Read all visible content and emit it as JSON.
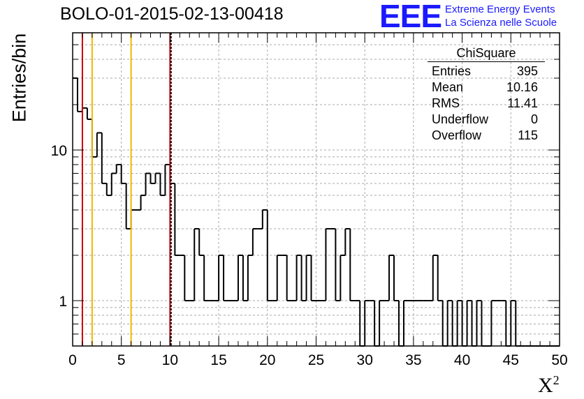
{
  "chart_data": {
    "type": "histogram",
    "title": "BOLO-01-2015-02-13-00418",
    "xlabel": "X",
    "xlabel_sup": "2",
    "ylabel": "Entries/bin",
    "xlim": [
      0,
      50
    ],
    "ylim": [
      0.5,
      60
    ],
    "yscale": "log",
    "grid": true,
    "bin_width": 0.5,
    "x_ticks": [
      0,
      5,
      10,
      15,
      20,
      25,
      30,
      35,
      40,
      45,
      50
    ],
    "y_ticks": [
      {
        "value": 1,
        "label": "1"
      },
      {
        "value": 10,
        "label": "10"
      }
    ],
    "values": [
      30,
      18,
      19,
      16,
      9,
      13,
      6,
      5,
      7,
      8,
      6,
      3,
      4,
      4,
      5,
      7,
      6,
      7,
      5,
      8,
      6,
      2,
      2,
      1,
      1,
      3,
      2,
      1,
      1,
      1,
      2,
      1,
      1,
      1,
      2,
      1,
      2,
      3,
      3,
      4,
      1,
      1,
      2,
      2,
      1,
      1,
      2,
      1,
      2,
      1,
      1,
      1,
      3,
      3,
      1,
      2,
      3,
      1,
      1,
      0.5,
      1,
      1,
      0.5,
      1,
      1,
      2,
      1,
      0.5,
      1,
      1,
      1,
      1,
      1,
      1,
      2,
      1,
      0.5,
      1,
      0.5,
      1,
      0.5,
      1,
      0.5,
      1,
      0.5,
      0.5,
      1,
      1,
      1,
      0.5,
      1,
      0.5,
      0.5,
      0.5,
      0.5,
      0.5,
      0.5,
      0.5,
      0.5,
      0.5
    ],
    "vertical_lines": [
      {
        "x": 1,
        "color": "#cc0000",
        "style": "solid"
      },
      {
        "x": 2,
        "color": "#f0b800",
        "style": "solid"
      },
      {
        "x": 6,
        "color": "#f0b800",
        "style": "solid"
      },
      {
        "x": 10,
        "color": "#cc0000",
        "style": "solid"
      },
      {
        "x": 10.1,
        "color": "#000000",
        "style": "dashed"
      }
    ]
  },
  "stats": {
    "title": "ChiSquare",
    "rows": [
      {
        "label": "Entries",
        "value": "395"
      },
      {
        "label": "Mean",
        "value": "10.16"
      },
      {
        "label": "RMS",
        "value": "11.41"
      },
      {
        "label": "Underflow",
        "value": "0"
      },
      {
        "label": "Overflow",
        "value": "115"
      }
    ]
  },
  "logo": {
    "mark": "EEE",
    "line1": "Extreme Energy Events",
    "line2": "La Scienza nelle Scuole",
    "color": "#1a1aff"
  }
}
